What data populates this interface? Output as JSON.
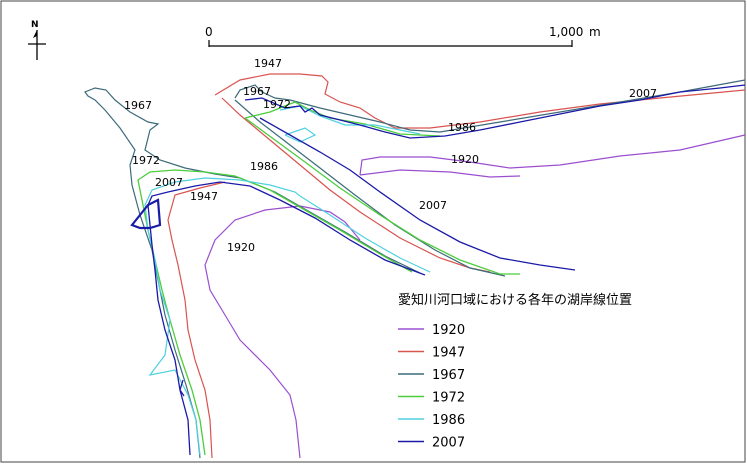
{
  "north_arrow": {
    "label": "N"
  },
  "scale_bar": {
    "start_label": "0",
    "end_label": "1,000",
    "unit": "m"
  },
  "legend": {
    "title": "愛知川河口域における各年の湖岸線位置",
    "entries": [
      {
        "year": "1920",
        "color": "#9b4fd0"
      },
      {
        "year": "1947",
        "color": "#d9534f"
      },
      {
        "year": "1967",
        "color": "#3d6b7a"
      },
      {
        "year": "1972",
        "color": "#4ccd3c"
      },
      {
        "year": "1986",
        "color": "#4fd0e0"
      },
      {
        "year": "2007",
        "color": "#1a1aa8"
      }
    ]
  },
  "map_labels": [
    {
      "text": "1947"
    },
    {
      "text": "1967"
    },
    {
      "text": "1967"
    },
    {
      "text": "1972"
    },
    {
      "text": "1972"
    },
    {
      "text": "2007"
    },
    {
      "text": "1986"
    },
    {
      "text": "1947"
    },
    {
      "text": "1986"
    },
    {
      "text": "1920"
    },
    {
      "text": "2007"
    },
    {
      "text": "1920"
    },
    {
      "text": "2007"
    }
  ]
}
